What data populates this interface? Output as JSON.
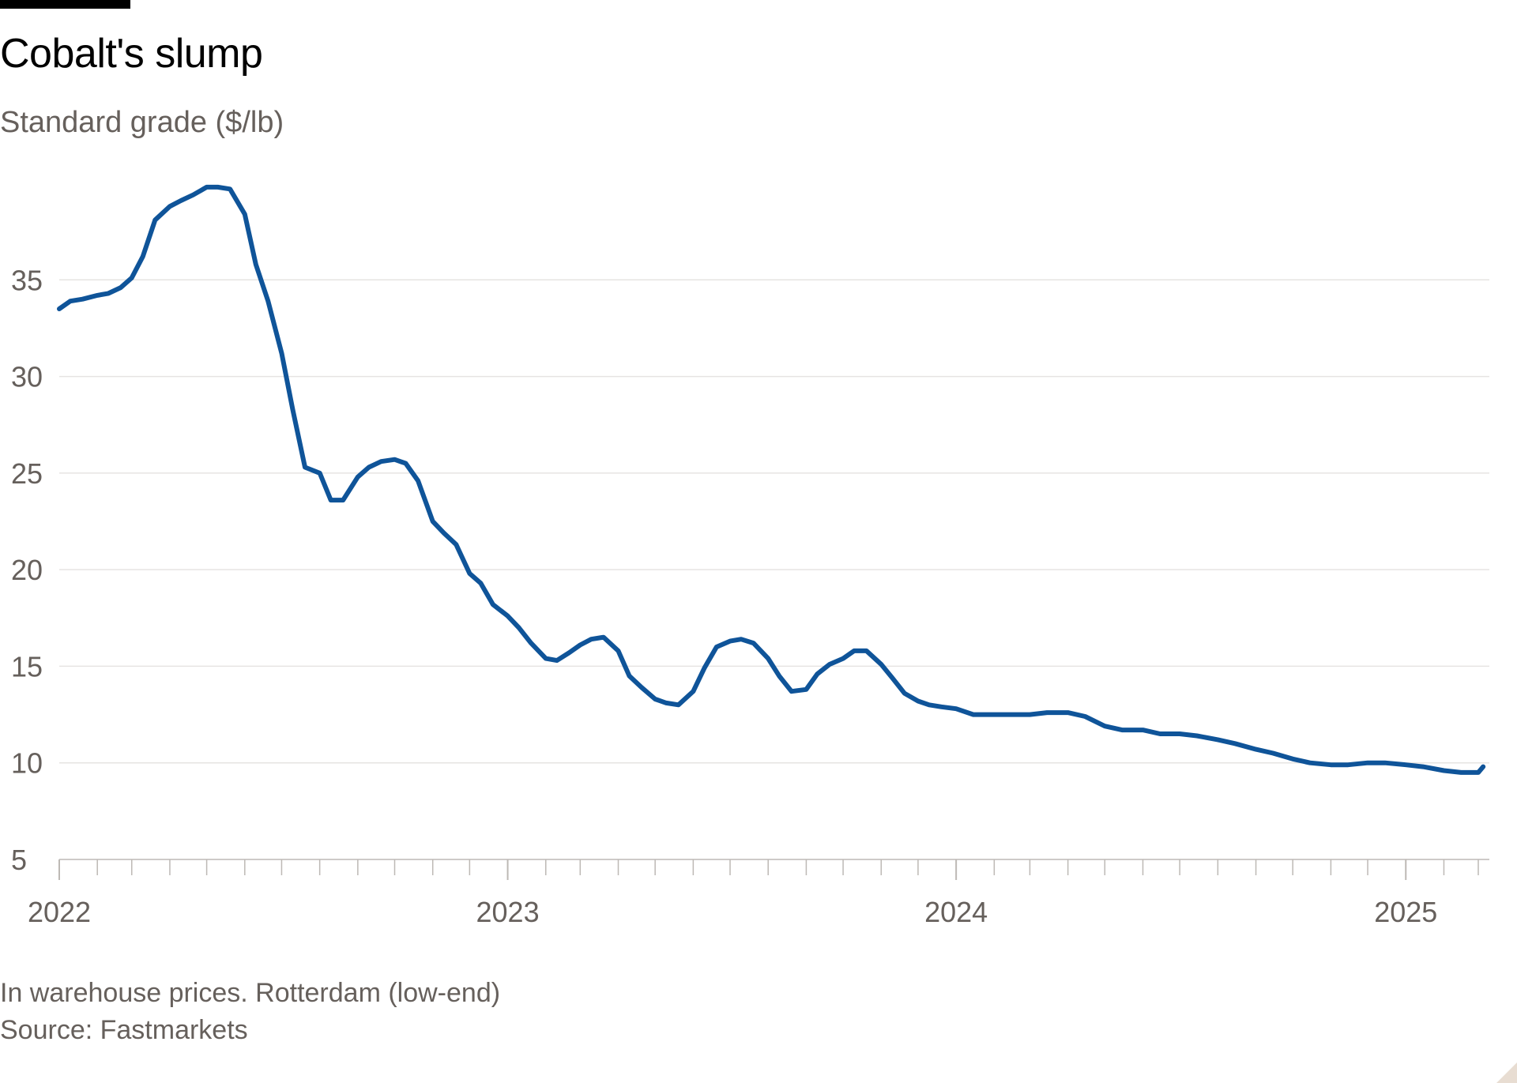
{
  "header": {
    "title": "Cobalt's slump",
    "subtitle": "Standard grade ($/lb)"
  },
  "footer": {
    "note": "In warehouse prices. Rotterdam (low-end)",
    "source": "Source: Fastmarkets"
  },
  "colors": {
    "line": "#0f5499",
    "grid": "#e6e4e2",
    "axis": "#bdb9b5",
    "text": "#66605c",
    "title": "#000000"
  },
  "chart_data": {
    "type": "line",
    "title": "Cobalt's slump",
    "subtitle": "Standard grade ($/lb)",
    "xlabel": "",
    "ylabel": "",
    "xlim": [
      "2022-01-01",
      "2025-03-10"
    ],
    "ylim": [
      5,
      40
    ],
    "yticks": [
      5,
      10,
      15,
      20,
      25,
      30,
      35
    ],
    "xtick_labels": [
      "2022",
      "2023",
      "2024",
      "2025"
    ],
    "grid": true,
    "legend": "none",
    "series": [
      {
        "x": [
          "2022-01-01",
          "2022-01-10",
          "2022-01-20",
          "2022-02-01",
          "2022-02-10",
          "2022-02-20",
          "2022-03-01",
          "2022-03-10",
          "2022-03-20",
          "2022-04-01",
          "2022-04-10",
          "2022-04-20",
          "2022-05-01",
          "2022-05-10",
          "2022-05-20",
          "2022-06-01",
          "2022-06-10",
          "2022-06-20",
          "2022-07-01",
          "2022-07-10",
          "2022-07-20",
          "2022-08-01",
          "2022-08-10",
          "2022-08-20",
          "2022-09-01",
          "2022-09-10",
          "2022-09-20",
          "2022-10-01",
          "2022-10-10",
          "2022-10-20",
          "2022-11-01",
          "2022-11-10",
          "2022-11-20",
          "2022-12-01",
          "2022-12-10",
          "2022-12-20",
          "2023-01-01",
          "2023-01-10",
          "2023-01-20",
          "2023-02-01",
          "2023-02-10",
          "2023-02-20",
          "2023-03-01",
          "2023-03-10",
          "2023-03-20",
          "2023-04-01",
          "2023-04-10",
          "2023-04-20",
          "2023-05-01",
          "2023-05-10",
          "2023-05-20",
          "2023-06-01",
          "2023-06-10",
          "2023-06-20",
          "2023-07-01",
          "2023-07-10",
          "2023-07-20",
          "2023-08-01",
          "2023-08-10",
          "2023-08-20",
          "2023-09-01",
          "2023-09-10",
          "2023-09-20",
          "2023-10-01",
          "2023-10-10",
          "2023-10-20",
          "2023-11-01",
          "2023-11-10",
          "2023-11-20",
          "2023-12-01",
          "2023-12-10",
          "2023-12-20",
          "2024-01-01",
          "2024-01-15",
          "2024-02-01",
          "2024-02-15",
          "2024-03-01",
          "2024-03-15",
          "2024-04-01",
          "2024-04-15",
          "2024-05-01",
          "2024-05-15",
          "2024-06-01",
          "2024-06-15",
          "2024-07-01",
          "2024-07-15",
          "2024-08-01",
          "2024-08-15",
          "2024-09-01",
          "2024-09-15",
          "2024-10-01",
          "2024-10-15",
          "2024-11-01",
          "2024-11-15",
          "2024-12-01",
          "2024-12-15",
          "2025-01-01",
          "2025-01-15",
          "2025-02-01",
          "2025-02-15",
          "2025-03-01",
          "2025-03-05"
        ],
        "values": [
          33.5,
          33.9,
          34.0,
          34.2,
          34.3,
          34.6,
          35.1,
          36.2,
          38.1,
          38.8,
          39.1,
          39.4,
          39.8,
          39.8,
          39.7,
          38.4,
          35.8,
          33.9,
          31.2,
          28.3,
          25.3,
          25.0,
          23.6,
          23.6,
          24.8,
          25.3,
          25.6,
          25.7,
          25.5,
          24.6,
          22.5,
          21.9,
          21.3,
          19.8,
          19.3,
          18.2,
          17.6,
          17.0,
          16.2,
          15.4,
          15.3,
          15.7,
          16.1,
          16.4,
          16.5,
          15.8,
          14.5,
          13.9,
          13.3,
          13.1,
          13.0,
          13.7,
          14.9,
          16.0,
          16.3,
          16.4,
          16.2,
          15.4,
          14.5,
          13.7,
          13.8,
          14.6,
          15.1,
          15.4,
          15.8,
          15.8,
          15.1,
          14.4,
          13.6,
          13.2,
          13.0,
          12.9,
          12.8,
          12.5,
          12.5,
          12.5,
          12.5,
          12.6,
          12.6,
          12.4,
          11.9,
          11.7,
          11.7,
          11.5,
          11.5,
          11.4,
          11.2,
          11.0,
          10.7,
          10.5,
          10.2,
          10.0,
          9.9,
          9.9,
          10.0,
          10.0,
          9.9,
          9.8,
          9.6,
          9.5,
          9.5,
          9.8
        ]
      }
    ]
  }
}
